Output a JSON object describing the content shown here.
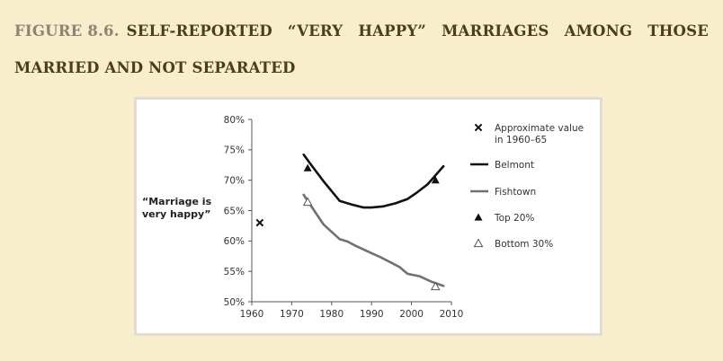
{
  "figure": {
    "label": "FIGURE",
    "number": "8.6.",
    "title": "SELF-REPORTED “VERY HAPPY” MARRIAGES AMONG THOSE MARRIED AND NOT SEPARATED"
  },
  "chart_data": {
    "type": "line",
    "ylabel_lines": [
      "“Marriage is",
      "very happy”"
    ],
    "xlim": [
      1960,
      2010
    ],
    "ylim": [
      50,
      80
    ],
    "x_ticks": [
      1960,
      1970,
      1980,
      1990,
      2000,
      2010
    ],
    "y_ticks": [
      50,
      55,
      60,
      65,
      70,
      75,
      80
    ],
    "y_tick_labels": [
      "50%",
      "55%",
      "60%",
      "65%",
      "70%",
      "75%",
      "80%"
    ],
    "series": [
      {
        "name": "Belmont",
        "color": "#111111",
        "points": [
          [
            1973,
            74.2
          ],
          [
            1975,
            72.4
          ],
          [
            1978,
            69.8
          ],
          [
            1980,
            68.2
          ],
          [
            1982,
            66.6
          ],
          [
            1985,
            66.0
          ],
          [
            1988,
            65.5
          ],
          [
            1990,
            65.5
          ],
          [
            1993,
            65.7
          ],
          [
            1996,
            66.2
          ],
          [
            1999,
            66.9
          ],
          [
            2001,
            67.8
          ],
          [
            2004,
            69.3
          ],
          [
            2006,
            70.8
          ],
          [
            2008,
            72.3
          ]
        ]
      },
      {
        "name": "Fishtown",
        "color": "#707070",
        "points": [
          [
            1973,
            67.6
          ],
          [
            1975,
            65.6
          ],
          [
            1978,
            62.7
          ],
          [
            1980,
            61.5
          ],
          [
            1982,
            60.3
          ],
          [
            1984,
            59.9
          ],
          [
            1986,
            59.2
          ],
          [
            1988,
            58.6
          ],
          [
            1990,
            58.0
          ],
          [
            1992,
            57.4
          ],
          [
            1995,
            56.4
          ],
          [
            1997,
            55.7
          ],
          [
            1999,
            54.6
          ],
          [
            2002,
            54.2
          ],
          [
            2005,
            53.3
          ],
          [
            2008,
            52.6
          ]
        ]
      }
    ],
    "markers": [
      {
        "name": "Approximate value in 1960–65",
        "symbol": "x",
        "x": 1962,
        "y": 63.0
      },
      {
        "name": "Top 20%",
        "symbol": "triangle-filled",
        "x": 1974,
        "y": 72.0
      },
      {
        "name": "Top 20%",
        "symbol": "triangle-filled",
        "x": 2006,
        "y": 70.0
      },
      {
        "name": "Bottom 30%",
        "symbol": "triangle-open",
        "x": 1974,
        "y": 66.4
      },
      {
        "name": "Bottom 30%",
        "symbol": "triangle-open",
        "x": 2006,
        "y": 52.5
      }
    ],
    "legend": {
      "placement": "right",
      "entries": [
        {
          "symbol": "x",
          "lines": [
            "Approximate value",
            "in 1960–65"
          ]
        },
        {
          "symbol": "line",
          "color": "#111111",
          "lines": [
            "Belmont"
          ]
        },
        {
          "symbol": "line",
          "color": "#707070",
          "lines": [
            "Fishtown"
          ]
        },
        {
          "symbol": "triangle-filled",
          "lines": [
            "Top 20%"
          ]
        },
        {
          "symbol": "triangle-open",
          "lines": [
            "Bottom 30%"
          ]
        }
      ]
    }
  }
}
